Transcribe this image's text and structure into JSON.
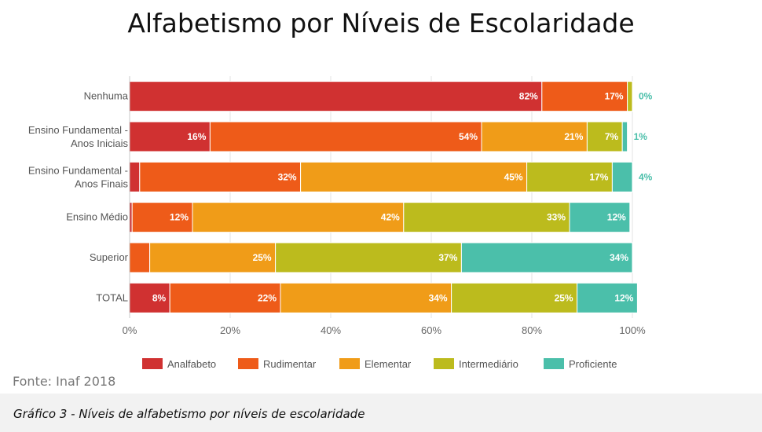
{
  "header": {
    "title": "Alfabetismo por Níveis de Escolaridade"
  },
  "source_note": "Fonte: Inaf 2018",
  "caption": "Gráfico  3 - Níveis de alfabetismo por níveis de escolaridade",
  "colors": {
    "Analfabeto": "#d03131",
    "Rudimentar": "#ee5b19",
    "Elementar": "#f09c18",
    "Intermediário": "#bcbb1d",
    "Proficiente": "#4bbfaa",
    "outside_label": "#4bbfaa"
  },
  "chart_data": {
    "type": "bar",
    "orientation": "horizontal",
    "stacked": true,
    "title": "Alfabetismo por Níveis de Escolaridade",
    "xlabel": "",
    "ylabel": "",
    "xlim": [
      0,
      100
    ],
    "x_ticks": [
      "0%",
      "20%",
      "40%",
      "60%",
      "80%",
      "100%"
    ],
    "grid": true,
    "legend_position": "bottom",
    "categories": [
      [
        "Nenhuma"
      ],
      [
        "Ensino Fundamental -",
        "Anos Iniciais"
      ],
      [
        "Ensino Fundamental -",
        "Anos Finais"
      ],
      [
        "Ensino Médio"
      ],
      [
        "Superior"
      ],
      [
        "TOTAL"
      ]
    ],
    "series": [
      {
        "name": "Analfabeto",
        "values": [
          82,
          16,
          2,
          0.5,
          0,
          8
        ],
        "labels": [
          "82%",
          "16%",
          "",
          "",
          "",
          "8%"
        ]
      },
      {
        "name": "Rudimentar",
        "values": [
          17,
          54,
          32,
          12,
          4,
          22
        ],
        "labels": [
          "17%",
          "54%",
          "32%",
          "12%",
          "",
          "22%"
        ]
      },
      {
        "name": "Elementar",
        "values": [
          0,
          21,
          45,
          42,
          25,
          34
        ],
        "labels": [
          "",
          "21%",
          "45%",
          "42%",
          "25%",
          "34%"
        ]
      },
      {
        "name": "Intermediário",
        "values": [
          1,
          7,
          17,
          33,
          37,
          25
        ],
        "labels": [
          "",
          "7%",
          "17%",
          "33%",
          "37%",
          "25%"
        ]
      },
      {
        "name": "Proficiente",
        "values": [
          0,
          1,
          4,
          12,
          34,
          12
        ],
        "labels": [
          "0%",
          "1%",
          "4%",
          "12%",
          "34%",
          "12%"
        ]
      }
    ]
  }
}
